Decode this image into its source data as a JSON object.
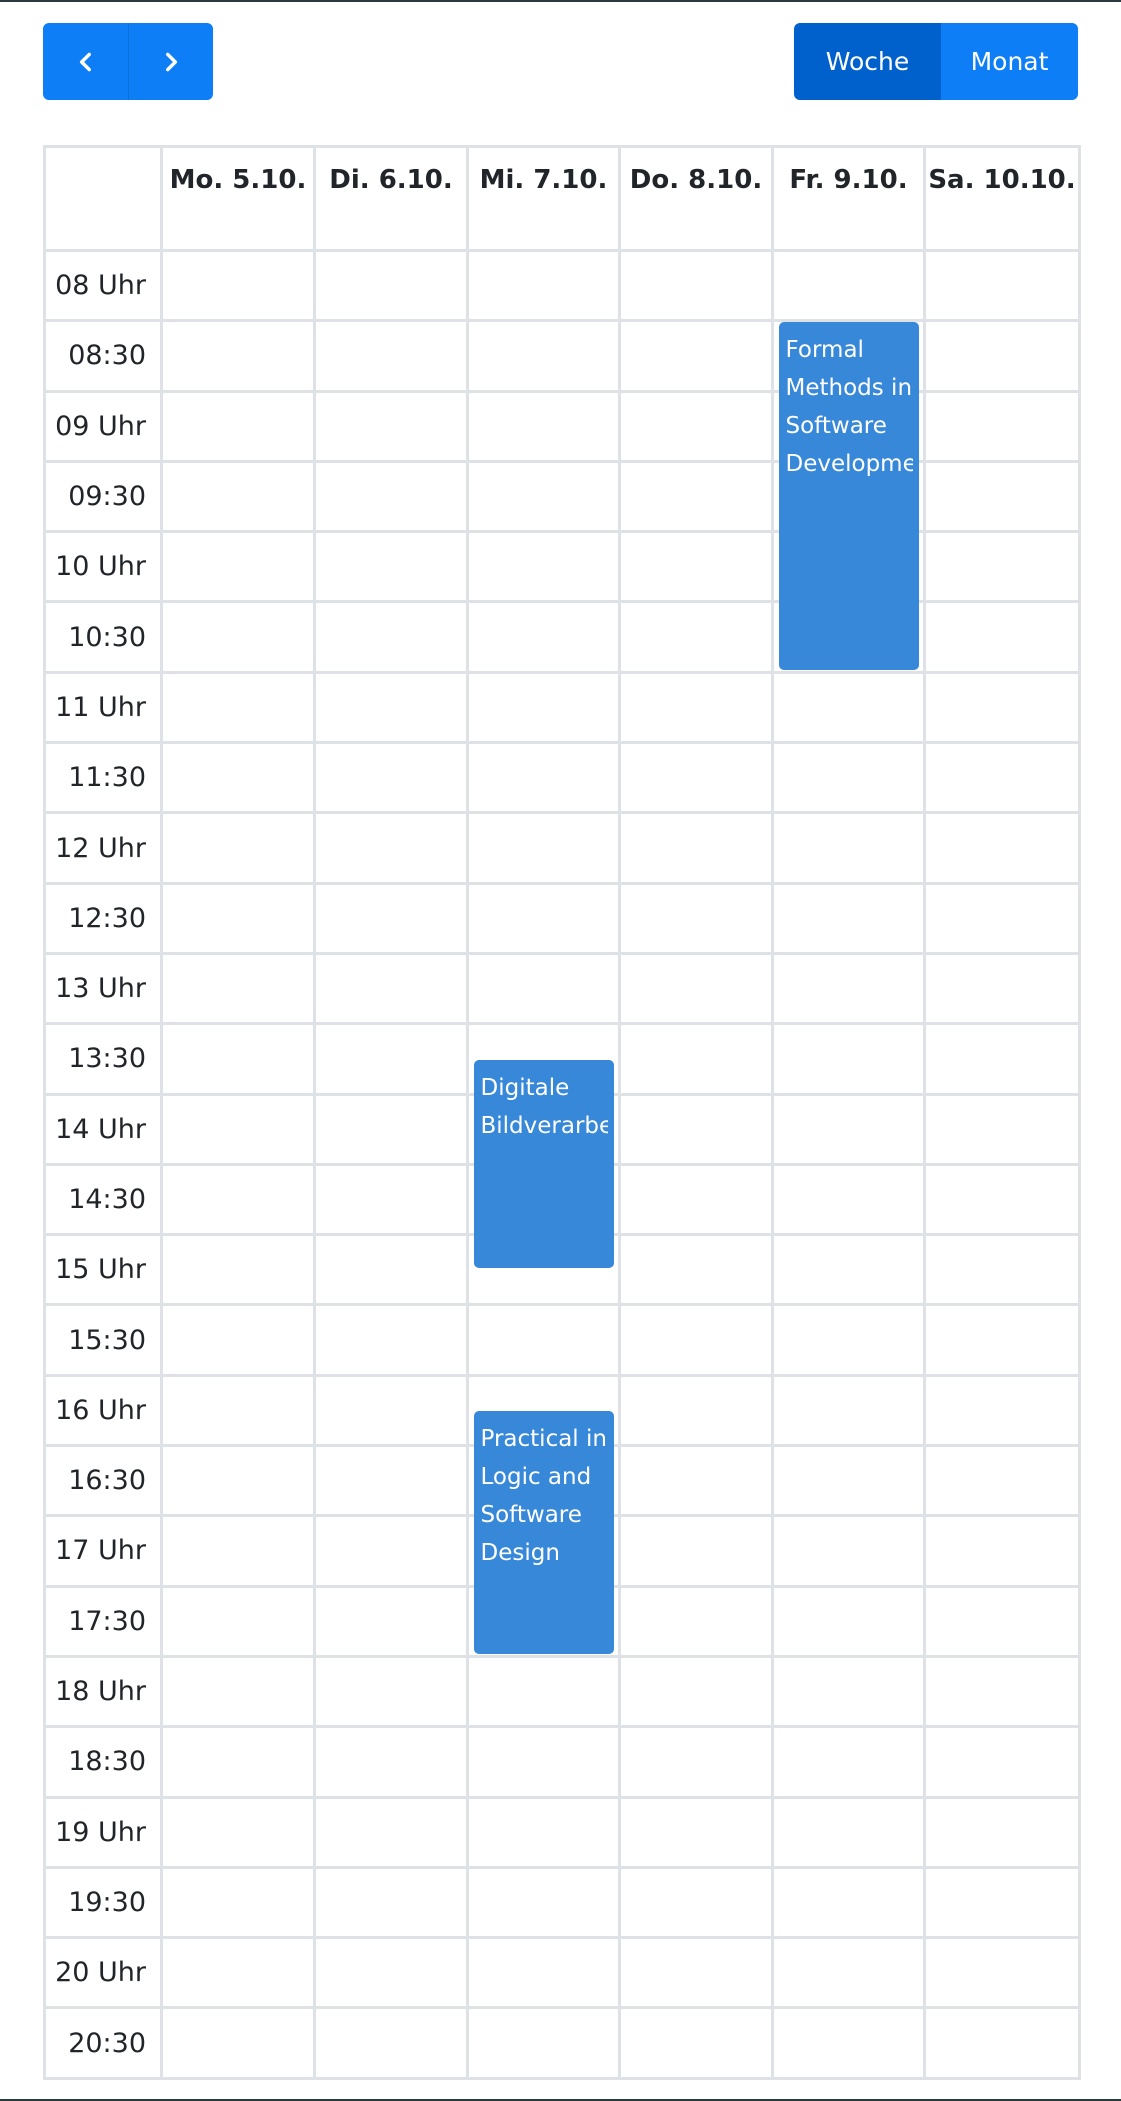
{
  "toolbar": {
    "prev_icon": "chevron-left-icon",
    "next_icon": "chevron-right-icon",
    "views": {
      "week": "Woche",
      "month": "Monat"
    },
    "active_view": "week"
  },
  "calendar": {
    "headers": [
      "",
      "Mo. 5.10.",
      "Di. 6.10.",
      "Mi. 7.10.",
      "Do. 8.10.",
      "Fr. 9.10.",
      "Sa. 10.10."
    ],
    "times": [
      "08 Uhr",
      "08:30",
      "09 Uhr",
      "09:30",
      "10 Uhr",
      "10:30",
      "11 Uhr",
      "11:30",
      "12 Uhr",
      "12:30",
      "13 Uhr",
      "13:30",
      "14 Uhr",
      "14:30",
      "15 Uhr",
      "15:30",
      "16 Uhr",
      "16:30",
      "17 Uhr",
      "17:30",
      "18 Uhr",
      "18:30",
      "19 Uhr",
      "19:30",
      "20 Uhr",
      "20:30"
    ],
    "events": [
      {
        "title_lines": [
          "Formal",
          "Methods in",
          "Software",
          "Development"
        ],
        "day": 5,
        "start_slot": 1,
        "end_slot": 6
      },
      {
        "title_lines": [
          "Digitale",
          "Bildverarbeitung"
        ],
        "day": 3,
        "start_slot": 11.5,
        "end_slot": 14.5
      },
      {
        "title_lines": [
          "Practical in",
          "Logic and",
          "Software",
          "Design"
        ],
        "day": 3,
        "start_slot": 16.5,
        "end_slot": 20
      }
    ],
    "colors": {
      "event": "#3788d8",
      "primary": "#0d7ef5",
      "primary_active": "#0061cc",
      "grid": "#dee2e6"
    }
  }
}
